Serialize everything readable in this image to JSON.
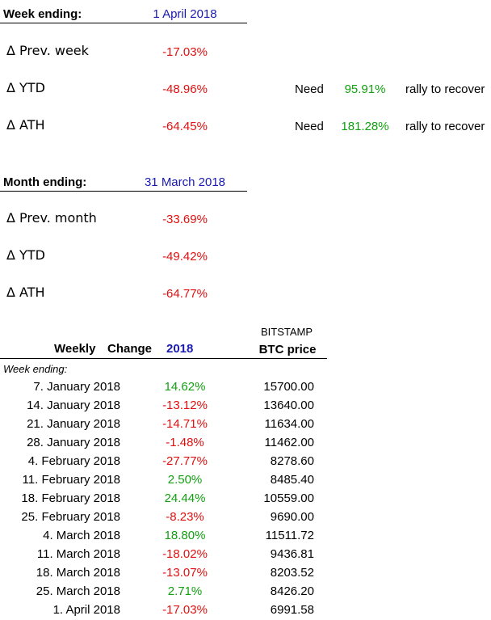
{
  "week": {
    "label": "Week ending:",
    "date": "1 April 2018",
    "rows": [
      {
        "label": "Δ Prev. week",
        "value": "-17.03%"
      },
      {
        "label": "Δ YTD",
        "value": "-48.96%",
        "need": "Need",
        "need_value": "95.91%",
        "note": "rally to recover"
      },
      {
        "label": "Δ ATH",
        "value": "-64.45%",
        "need": "Need",
        "need_value": "181.28%",
        "note": "rally to recover"
      }
    ]
  },
  "month": {
    "label": "Month ending:",
    "date": "31 March 2018",
    "rows": [
      {
        "label": "Δ Prev. month",
        "value": "-33.69%"
      },
      {
        "label": "Δ YTD",
        "value": "-49.42%"
      },
      {
        "label": "Δ ATH",
        "value": "-64.77%"
      }
    ]
  },
  "table": {
    "header": {
      "weekly": "Weekly",
      "change": "Change",
      "year": "2018",
      "source": "BITSTAMP",
      "price": "BTC price"
    },
    "subheader": "Week ending:",
    "rows": [
      [
        "7. January 2018",
        "14.62%",
        "15700.00"
      ],
      [
        "14. January 2018",
        "-13.12%",
        "13640.00"
      ],
      [
        "21. January 2018",
        "-14.71%",
        "11634.00"
      ],
      [
        "28. January 2018",
        "-1.48%",
        "11462.00"
      ],
      [
        "4. February 2018",
        "-27.77%",
        "8278.60"
      ],
      [
        "11. February 2018",
        "2.50%",
        "8485.40"
      ],
      [
        "18. February 2018",
        "24.44%",
        "10559.00"
      ],
      [
        "25. February 2018",
        "-8.23%",
        "9690.00"
      ],
      [
        "4. March 2018",
        "18.80%",
        "11511.72"
      ],
      [
        "11. March 2018",
        "-18.02%",
        "9436.81"
      ],
      [
        "18. March 2018",
        "-13.07%",
        "8203.52"
      ],
      [
        "25. March 2018",
        "2.71%",
        "8426.20"
      ],
      [
        "1. April 2018",
        "-17.03%",
        "6991.58"
      ]
    ]
  }
}
